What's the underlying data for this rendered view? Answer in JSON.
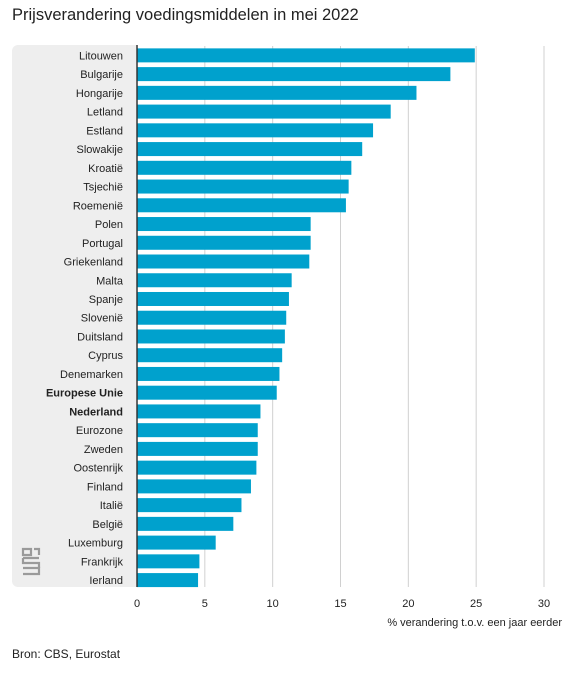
{
  "title": "Prijsverandering voedingsmiddelen in mei 2022",
  "source": "Bron: CBS, Eurostat",
  "colors": {
    "bar": "#00a1cd",
    "axis": "#333333",
    "grid": "#d0d0d0",
    "panel": "#eeeeee"
  },
  "logo_icon": "cbs-logo-icon",
  "chart_data": {
    "type": "bar",
    "orientation": "horizontal",
    "categories": [
      "Litouwen",
      "Bulgarije",
      "Hongarije",
      "Letland",
      "Estland",
      "Slowakije",
      "Kroatië",
      "Tsjechië",
      "Roemenië",
      "Polen",
      "Portugal",
      "Griekenland",
      "Malta",
      "Spanje",
      "Slovenië",
      "Duitsland",
      "Cyprus",
      "Denemarken",
      "Europese Unie",
      "Nederland",
      "Eurozone",
      "Zweden",
      "Oostenrijk",
      "Finland",
      "Italië",
      "België",
      "Luxemburg",
      "Frankrijk",
      "Ierland"
    ],
    "bold_categories": [
      "Europese Unie",
      "Nederland"
    ],
    "values": [
      24.9,
      23.1,
      20.6,
      18.7,
      17.4,
      16.6,
      15.8,
      15.6,
      15.4,
      12.8,
      12.8,
      12.7,
      11.4,
      11.2,
      11.0,
      10.9,
      10.7,
      10.5,
      10.3,
      9.1,
      8.9,
      8.9,
      8.8,
      8.4,
      7.7,
      7.1,
      5.8,
      4.6,
      4.5
    ],
    "xlabel": "% verandering t.o.v. een jaar eerder",
    "xlim": [
      0,
      30
    ],
    "xticks": [
      0,
      5,
      10,
      15,
      20,
      25,
      30
    ],
    "grid": true
  }
}
